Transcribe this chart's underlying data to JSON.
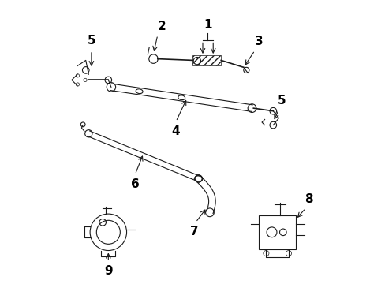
{
  "bg_color": "#ffffff",
  "line_color": "#1a1a1a",
  "label_color": "#000000",
  "font_size": 11,
  "lw_main": 1.2,
  "lw_thin": 0.8
}
